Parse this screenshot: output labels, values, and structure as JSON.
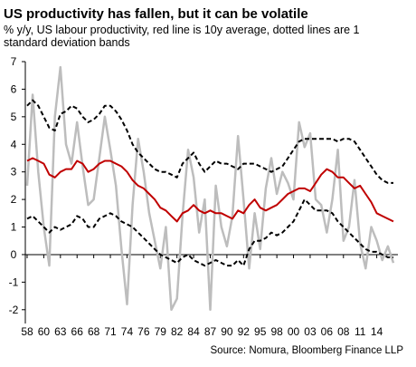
{
  "chart_data": {
    "type": "line",
    "title": "US productivity has fallen, but it can be volatile",
    "subtitle": "% y/y, US labour productivity, red line is 10y average, dotted lines are 1 standard deviation bands",
    "source": "Source: Nomura, Bloomberg Finance LLP",
    "categories": [
      "58",
      null,
      null,
      "60",
      null,
      null,
      "63",
      null,
      null,
      "66",
      null,
      null,
      "68",
      null,
      null,
      "71",
      null,
      null,
      "74",
      null,
      null,
      "76",
      null,
      null,
      "79",
      null,
      null,
      "82",
      null,
      null,
      "84",
      null,
      null,
      "87",
      null,
      null,
      "90",
      null,
      null,
      "92",
      null,
      null,
      "95",
      null,
      null,
      "98",
      null,
      null,
      "00",
      null,
      null,
      "03",
      null,
      null,
      "06",
      null,
      null,
      "08",
      null,
      null,
      "11",
      null,
      null,
      "14",
      null,
      null,
      null
    ],
    "ylim": [
      -2.5,
      7
    ],
    "yticks": [
      -2,
      -1,
      0,
      1,
      2,
      3,
      4,
      5,
      6,
      7
    ],
    "series": [
      {
        "name": "US labour productivity",
        "color": "#bdbdbd",
        "dash": false,
        "width": 2.5,
        "values": [
          2.5,
          5.8,
          3.0,
          1.0,
          -0.4,
          5.0,
          6.8,
          4.0,
          3.3,
          4.8,
          3.2,
          1.8,
          2.0,
          3.5,
          5.0,
          3.8,
          2.5,
          0.2,
          -1.8,
          1.8,
          4.2,
          3.0,
          1.5,
          0.5,
          -0.5,
          1.0,
          -2.0,
          -1.6,
          1.4,
          3.8,
          2.8,
          0.8,
          2.0,
          -2.0,
          2.5,
          1.0,
          0.3,
          1.4,
          4.3,
          2.0,
          -0.5,
          1.5,
          0.2,
          2.4,
          3.5,
          2.2,
          3.0,
          2.6,
          2.0,
          4.8,
          3.9,
          4.4,
          2.0,
          1.8,
          0.8,
          2.0,
          3.8,
          0.5,
          1.0,
          2.7,
          0.4,
          -0.5,
          1.0,
          0.5,
          -0.2,
          0.3,
          -0.3
        ]
      },
      {
        "name": "10y average",
        "color": "#c00000",
        "dash": false,
        "width": 2,
        "values": [
          3.4,
          3.5,
          3.4,
          3.3,
          2.9,
          2.8,
          3.0,
          3.1,
          3.1,
          3.4,
          3.3,
          3.0,
          3.1,
          3.3,
          3.4,
          3.4,
          3.3,
          3.2,
          3.0,
          2.7,
          2.5,
          2.4,
          2.2,
          2.0,
          1.7,
          1.6,
          1.4,
          1.2,
          1.5,
          1.6,
          1.8,
          1.6,
          1.5,
          1.6,
          1.5,
          1.5,
          1.4,
          1.3,
          1.6,
          1.5,
          1.8,
          2.0,
          1.7,
          1.6,
          1.7,
          1.8,
          2.0,
          2.2,
          2.3,
          2.4,
          2.4,
          2.3,
          2.6,
          2.9,
          3.1,
          3.0,
          2.8,
          2.8,
          2.6,
          2.4,
          2.5,
          2.2,
          1.9,
          1.5,
          1.4,
          1.3,
          1.2
        ]
      },
      {
        "name": "Upper band",
        "color": "#000000",
        "dash": true,
        "width": 2,
        "values": [
          5.4,
          5.6,
          5.4,
          5.0,
          4.6,
          4.5,
          5.1,
          5.2,
          5.4,
          5.3,
          5.0,
          4.8,
          4.9,
          5.1,
          5.4,
          5.4,
          5.2,
          4.9,
          4.5,
          4.0,
          3.7,
          3.5,
          3.3,
          3.1,
          3.0,
          3.0,
          2.9,
          2.8,
          3.3,
          3.5,
          3.7,
          3.3,
          3.0,
          3.2,
          3.4,
          3.3,
          3.3,
          3.2,
          3.1,
          3.3,
          3.3,
          3.3,
          3.2,
          3.1,
          3.0,
          3.1,
          3.2,
          3.5,
          3.8,
          4.1,
          4.2,
          4.2,
          4.2,
          4.2,
          4.2,
          4.2,
          4.1,
          4.2,
          4.2,
          4.1,
          3.8,
          3.5,
          3.2,
          2.9,
          2.7,
          2.6,
          2.6
        ]
      },
      {
        "name": "Lower band",
        "color": "#000000",
        "dash": true,
        "width": 2,
        "values": [
          1.3,
          1.4,
          1.2,
          1.0,
          0.8,
          1.0,
          0.9,
          1.0,
          1.1,
          1.4,
          1.3,
          1.0,
          1.0,
          1.3,
          1.4,
          1.5,
          1.4,
          1.2,
          1.1,
          1.0,
          0.8,
          0.6,
          0.4,
          0.2,
          0.0,
          -0.1,
          -0.2,
          -0.3,
          -0.1,
          0.0,
          -0.2,
          -0.3,
          -0.4,
          -0.3,
          -0.2,
          -0.3,
          -0.4,
          -0.4,
          -0.2,
          -0.4,
          0.2,
          0.5,
          0.5,
          0.6,
          0.8,
          0.7,
          0.8,
          1.0,
          1.2,
          1.6,
          2.0,
          1.8,
          1.6,
          1.6,
          1.6,
          1.5,
          1.2,
          1.0,
          0.8,
          0.6,
          0.4,
          0.2,
          0.1,
          0.1,
          0.0,
          -0.1,
          -0.1
        ]
      }
    ]
  }
}
